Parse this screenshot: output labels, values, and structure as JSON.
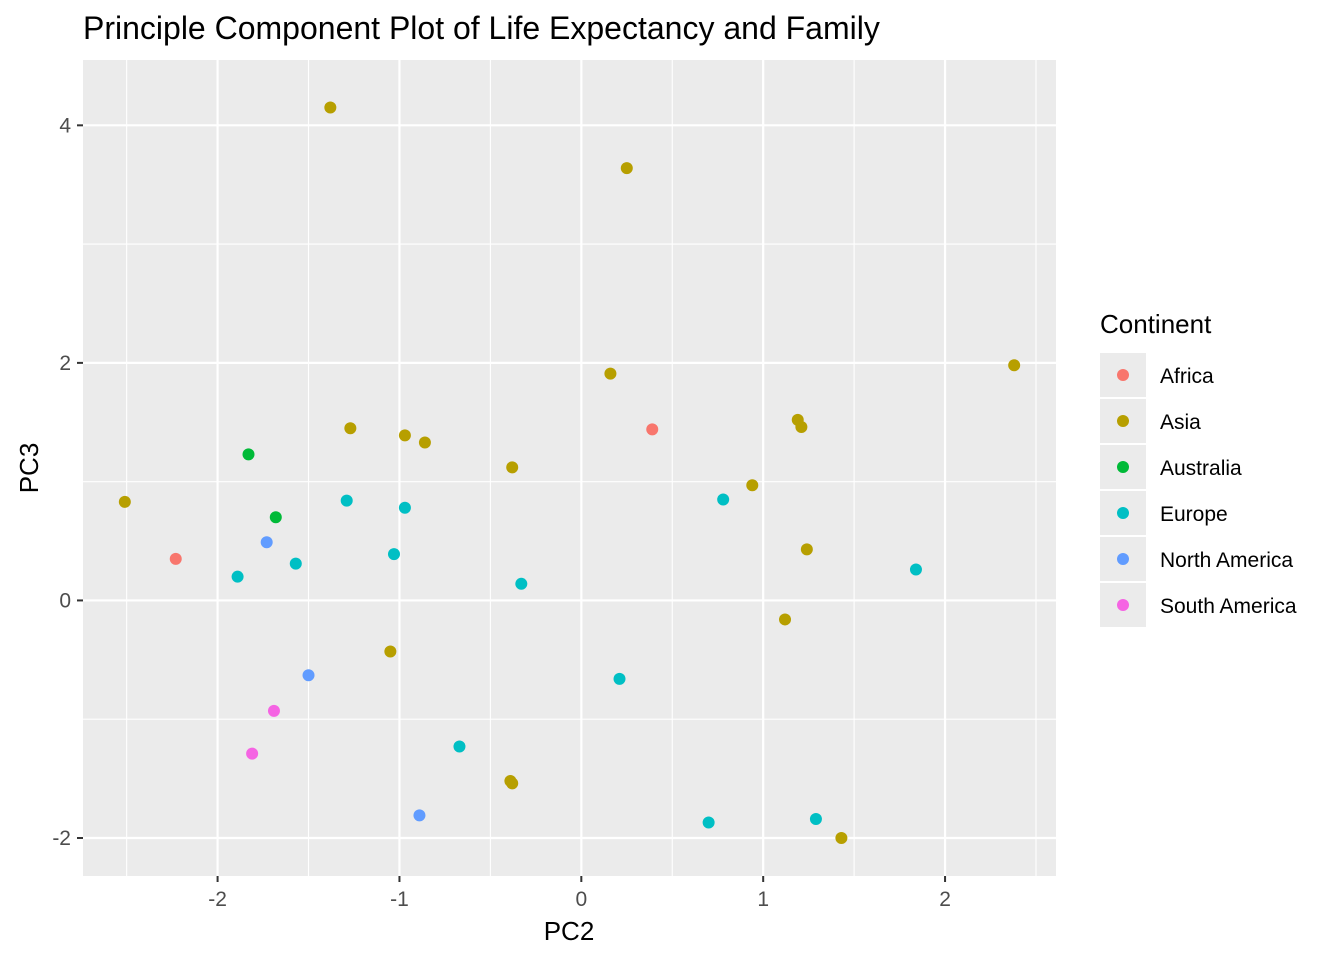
{
  "chart_data": {
    "type": "scatter",
    "title": "Principle Component Plot of Life Expectancy and Family",
    "xlabel": "PC2",
    "ylabel": "PC3",
    "xlim": [
      -2.74,
      2.61
    ],
    "ylim": [
      -2.32,
      4.55
    ],
    "x_ticks": [
      -2,
      -1,
      0,
      1,
      2
    ],
    "x_tick_labels": [
      "-2",
      "-1",
      "0",
      "1",
      "2"
    ],
    "y_ticks": [
      -2,
      0,
      2,
      4
    ],
    "y_tick_labels": [
      "-2",
      "0",
      "2",
      "4"
    ],
    "grid": true,
    "background": "#ebebeb",
    "legend": {
      "title": "Continent",
      "position": "right"
    },
    "series": [
      {
        "name": "Africa",
        "color": "#F8766D",
        "points": [
          [
            -2.23,
            0.35
          ],
          [
            0.39,
            1.44
          ]
        ]
      },
      {
        "name": "Asia",
        "color": "#B79F00",
        "points": [
          [
            -1.38,
            4.15
          ],
          [
            0.25,
            3.64
          ],
          [
            2.38,
            1.98
          ],
          [
            0.16,
            1.91
          ],
          [
            1.19,
            1.52
          ],
          [
            1.21,
            1.46
          ],
          [
            -1.27,
            1.45
          ],
          [
            -0.97,
            1.39
          ],
          [
            -0.86,
            1.33
          ],
          [
            -0.38,
            1.12
          ],
          [
            0.94,
            0.97
          ],
          [
            -2.51,
            0.83
          ],
          [
            1.24,
            0.43
          ],
          [
            1.12,
            -0.16
          ],
          [
            -1.05,
            -0.43
          ],
          [
            -0.39,
            -1.52
          ],
          [
            -0.38,
            -1.54
          ],
          [
            1.43,
            -2.0
          ]
        ]
      },
      {
        "name": "Australia",
        "color": "#00BA38",
        "points": [
          [
            -1.83,
            1.23
          ],
          [
            -1.68,
            0.7
          ]
        ]
      },
      {
        "name": "Europe",
        "color": "#00BFC4",
        "points": [
          [
            -1.29,
            0.84
          ],
          [
            -0.97,
            0.78
          ],
          [
            0.78,
            0.85
          ],
          [
            -1.03,
            0.39
          ],
          [
            -1.57,
            0.31
          ],
          [
            -1.89,
            0.2
          ],
          [
            -0.33,
            0.14
          ],
          [
            1.84,
            0.26
          ],
          [
            0.21,
            -0.66
          ],
          [
            -0.67,
            -1.23
          ],
          [
            0.7,
            -1.87
          ],
          [
            1.29,
            -1.84
          ]
        ]
      },
      {
        "name": "North America",
        "color": "#619CFF",
        "points": [
          [
            -1.73,
            0.49
          ],
          [
            -1.5,
            -0.63
          ],
          [
            -0.89,
            -1.81
          ]
        ]
      },
      {
        "name": "South America",
        "color": "#F564E3",
        "points": [
          [
            -1.69,
            -0.93
          ],
          [
            -1.81,
            -1.29
          ]
        ]
      }
    ]
  }
}
